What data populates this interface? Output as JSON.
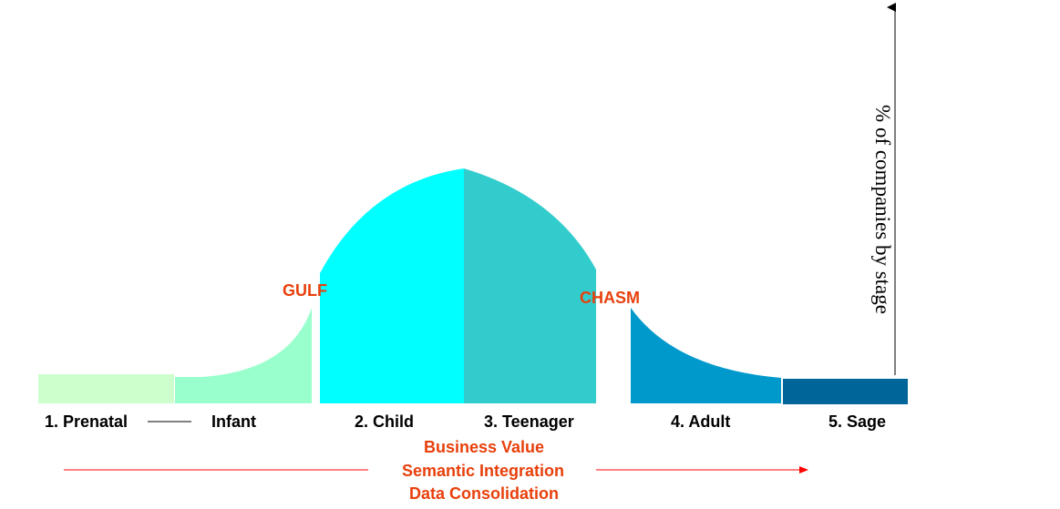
{
  "stages": {
    "prenatal": "1. Prenatal",
    "infant": "Infant",
    "child": "2. Child",
    "teenager": "3. Teenager",
    "adult": "4. Adult",
    "sage": "5. Sage"
  },
  "gaps": {
    "gulf": "GULF",
    "chasm": "CHASM"
  },
  "axis_label": "% of companies by stage",
  "progression": {
    "line1": "Business Value",
    "line2": "Semantic Integration",
    "line3": "Data Consolidation"
  },
  "colors": {
    "prenatal": "#ccffcc",
    "infant": "#99ffcc",
    "child": "#00ffff",
    "teenager": "#33cccc",
    "adult": "#0099cc",
    "sage": "#006699",
    "accent_red": "#e8400c",
    "arrow_red": "#ff0000"
  }
}
